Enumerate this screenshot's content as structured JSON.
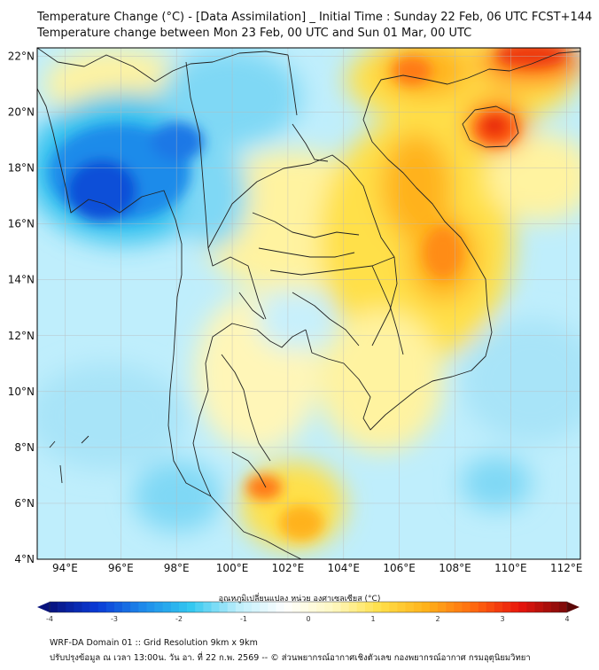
{
  "title": {
    "line1": "Temperature Change (°C) - [Data Assimilation] _ Initial Time : Sunday 22 Feb, 06 UTC FCST+144",
    "line2": "Temperature change between Mon 23 Feb, 00 UTC and Sun 01 Mar, 00 UTC"
  },
  "map": {
    "lon_range": [
      93,
      112.5
    ],
    "lat_range": [
      4,
      22.3
    ],
    "lon_ticks": [
      "94°E",
      "96°E",
      "98°E",
      "100°E",
      "102°E",
      "104°E",
      "106°E",
      "108°E",
      "110°E",
      "112°E"
    ],
    "lat_ticks": [
      "22°N",
      "20°N",
      "18°N",
      "16°N",
      "14°N",
      "12°N",
      "10°N",
      "8°N",
      "6°N",
      "4°N"
    ],
    "lon_values": [
      94,
      96,
      98,
      100,
      102,
      104,
      106,
      108,
      110,
      112
    ],
    "lat_values": [
      22,
      20,
      18,
      16,
      14,
      12,
      10,
      8,
      6,
      4
    ]
  },
  "colorbar": {
    "label": "อุณหภูมิเปลี่ยนแปลง หน่วย องศาเซลเซียส (°C)",
    "tick_labels": [
      "-4",
      "-3",
      "-2",
      "-1",
      "0",
      "1",
      "2",
      "3",
      "4"
    ],
    "tick_values": [
      -4,
      -3,
      -2,
      -1,
      0,
      1,
      2,
      3,
      4
    ],
    "range": [
      -4,
      4
    ],
    "colors": [
      "#08127c",
      "#0a3ad6",
      "#1e8bea",
      "#33c8f0",
      "#bdeefb",
      "#ffffff",
      "#fff9c4",
      "#ffe04a",
      "#ffb21a",
      "#ff6a10",
      "#e8150c",
      "#7a0a0a"
    ]
  },
  "footer": {
    "line1": "WRF-DA Domain 01 :: Grid Resolution 9km x 9km",
    "line2": "ปรับปรุงข้อมูล ณ เวลา 13:00น. วัน อา. ที่ 22 ก.พ. 2569 -- © ส่วนพยากรณ์อากาศเชิงตัวเลข กองพยากรณ์อากาศ กรมอุตุนิยมวิทยา"
  }
}
